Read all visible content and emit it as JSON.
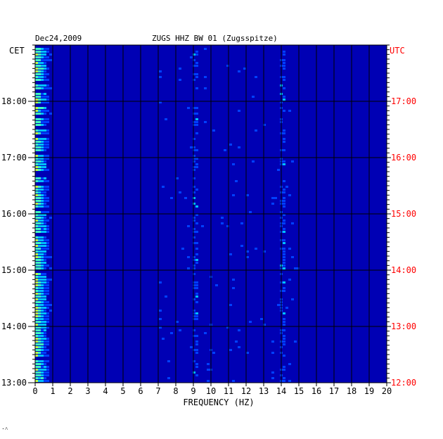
{
  "header": {
    "date": "Dec24,2009",
    "station": "ZUGS HHZ BW 01 (Zugsspitze)",
    "left_zone": "CET",
    "right_zone": "UTC"
  },
  "footer": {
    "mark": "·˄"
  },
  "colors": {
    "background": "#0000b4",
    "grid": "#000000",
    "utc_label": "#ff0000",
    "cet_label": "#000000"
  },
  "chart_data": {
    "type": "heatmap",
    "title": "ZUGS HHZ BW 01 (Zugsspitze)",
    "subtitle": "Dec24,2009",
    "xlabel": "FREQUENCY (HZ)",
    "x": {
      "min": 0,
      "max": 20,
      "ticks": [
        "0",
        "1",
        "2",
        "3",
        "4",
        "5",
        "6",
        "7",
        "8",
        "9",
        "10",
        "11",
        "12",
        "13",
        "14",
        "15",
        "16",
        "17",
        "18",
        "19",
        "20"
      ]
    },
    "y_left": {
      "zone": "CET",
      "start_hour": 13,
      "end_hour": 19,
      "ticks": [
        "13:00",
        "14:00",
        "15:00",
        "16:00",
        "17:00",
        "18:00"
      ]
    },
    "y_right": {
      "zone": "UTC",
      "start_hour": 12,
      "end_hour": 18,
      "ticks": [
        "12:00",
        "13:00",
        "14:00",
        "15:00",
        "16:00",
        "17:00"
      ]
    },
    "grid": true,
    "colormap": [
      "#00007a",
      "#0000b4",
      "#0040ff",
      "#00c0ff",
      "#40ffc0",
      "#c0ff40",
      "#ffc000",
      "#ff4000"
    ]
  }
}
